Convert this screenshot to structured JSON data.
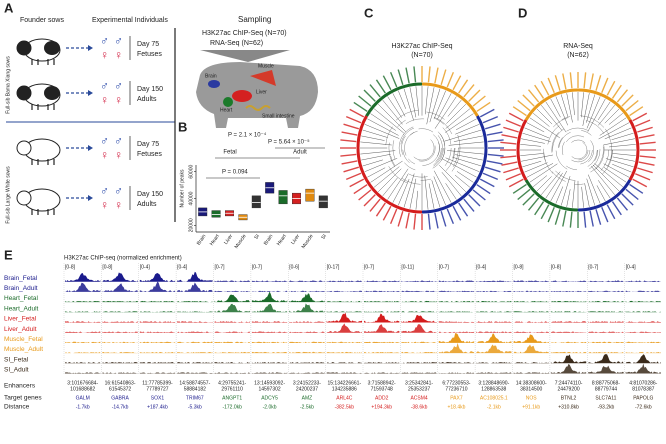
{
  "panels": [
    "A",
    "B",
    "C",
    "D",
    "E"
  ],
  "panel_a": {
    "founder": "Founder sows",
    "experimental": "Experimental Individuals",
    "sampling": "Sampling",
    "chip": "H3K27ac ChIP-Seq (N=70)",
    "rna": "RNA-Seq (N=62)",
    "group1": "Full-sib Bama Xiang sows",
    "group2": "Full-sib Large White sows",
    "day75": "Day 75",
    "fetuses": "Fetuses",
    "day150": "Day 150",
    "adults": "Adults",
    "male": "♂",
    "female": "♀",
    "tissues": [
      "Muscle",
      "Brain",
      "Liver",
      "Heart",
      "Small intestine"
    ]
  },
  "panel_b": {
    "type": "box",
    "ylabel": "Number of peaks",
    "categories": [
      "Brain",
      "Heart",
      "Liver",
      "Muscle",
      "SI"
    ],
    "colors": [
      "#1a1a7a",
      "#1b6b2a",
      "#d42020",
      "#e08a10",
      "#333333"
    ],
    "groups": [
      {
        "name": "Fetal",
        "q1": [
          27000,
          26000,
          27000,
          24000,
          33000
        ],
        "median": [
          30000,
          28000,
          29000,
          26000,
          37000
        ],
        "q3": [
          33000,
          31000,
          31000,
          28000,
          42000
        ]
      },
      {
        "name": "Adult",
        "q1": [
          44000,
          36000,
          36000,
          38000,
          33000
        ],
        "median": [
          48000,
          42000,
          40000,
          44000,
          38000
        ],
        "q3": [
          52000,
          46000,
          44000,
          47000,
          42000
        ]
      }
    ],
    "ylim": [
      15000,
      65000
    ],
    "yticks": [
      20000,
      40000,
      60000
    ],
    "annotations": [
      "P = 0.094",
      "P = 2.1 × 10⁻⁴",
      "P = 5.64 × 10⁻⁵"
    ]
  },
  "panel_c": {
    "title": "H3K27ac ChIP-Seq",
    "n": "(N=70)"
  },
  "panel_d": {
    "title": "RNA-Seq",
    "n": "(N=62)"
  },
  "panel_e": {
    "title": "H3K27ac ChIP-seq (normalized enrichment)",
    "tracks": [
      "Brain_Fetal",
      "Brain_Adult",
      "Heart_Fetal",
      "Heart_Adult",
      "Liver_Fetal",
      "Liver_Adult",
      "Muscle_Fetal",
      "Muscle_Adult",
      "SI_Fetal",
      "SI_Adult"
    ],
    "ranges": [
      "[0-8]",
      "[0-8]",
      "[0-4]",
      "[0-4]",
      "[0-7]",
      "[0-7]",
      "[0-6]",
      "[0-17]",
      "[0-7]",
      "[0-11]",
      "[0-7]",
      "[0-4]",
      "[0-8]",
      "[0-8]",
      "[0-7]",
      "[0-4]"
    ],
    "enhancers": [
      [
        "3:101676684-",
        "101688682"
      ],
      [
        "16:61540863-",
        "61545372"
      ],
      [
        "11:77785399-",
        "77789727"
      ],
      [
        "14:58874557-",
        "58884182"
      ],
      [
        "4:29755241-",
        "29761110"
      ],
      [
        "13:14593092-",
        "14597302"
      ],
      [
        "3:24152233-",
        "24200237"
      ],
      [
        "15:134226661-",
        "134235886"
      ],
      [
        "3:71588942-",
        "71593748"
      ],
      [
        "3:25342841-",
        "25353237"
      ],
      [
        "6:77230553-",
        "77236710"
      ],
      [
        "3:128848690-",
        "128863538"
      ],
      [
        "14:38308600-",
        "38314500"
      ],
      [
        "7:24474110-",
        "24479200"
      ],
      [
        "8:88775068-",
        "88779744"
      ],
      [
        "4:81070286-",
        "81078387"
      ]
    ],
    "genes": [
      "GALM",
      "GABRA",
      "SOX1",
      "TRIM67",
      "ANGPT1",
      "ADCY5",
      "AMZ",
      "ARL4C",
      "ADD2",
      "ACSM4",
      "PAX7",
      "AC108025.1",
      "NOS",
      "BTNL2",
      "SLC7A11",
      "PAPOLG"
    ],
    "distances": [
      "-1.7kb",
      "-14.7kb",
      "+187.4kb",
      "-5.3kb",
      "-172.0kb",
      "-2.0kb",
      "-2.5kb",
      "-382.5kb",
      "+194.3kb",
      "-38.6kb",
      "+18.4kb",
      "-2.1kb",
      "+91.1kb",
      "+310.8kb",
      "-93.2kb",
      "-72.6kb"
    ],
    "row_labels": [
      "Enhancers",
      "Target genes",
      "Distance"
    ]
  }
}
